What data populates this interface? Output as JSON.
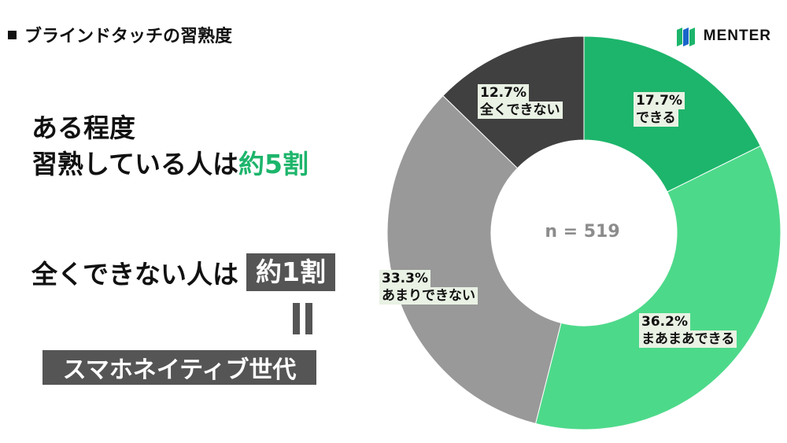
{
  "slide": {
    "title": "ブラインドタッチの習熟度",
    "logo_text": "MENTER",
    "headline_line1": "ある程度",
    "headline_line2_prefix": "習熟している人は",
    "headline_line2_accent": "約5割",
    "line2_prefix": "全くできない人は",
    "line2_pill": "約1割",
    "bottom_label": "スマホネイティブ世代"
  },
  "colors": {
    "accent": "#1db56b",
    "dark_gray": "#555555"
  },
  "chart_data": {
    "type": "pie",
    "donut": true,
    "center_text": "n = 519",
    "slices": [
      {
        "pct_label": "17.7%",
        "category": "できる",
        "value": 17.7,
        "color": "#1db56b"
      },
      {
        "pct_label": "36.2%",
        "category": "まあまあできる",
        "value": 36.2,
        "color": "#4dd98a"
      },
      {
        "pct_label": "33.3%",
        "category": "あまりできない",
        "value": 33.3,
        "color": "#999999"
      },
      {
        "pct_label": "12.7%",
        "category": "全くできない",
        "value": 12.7,
        "color": "#404040"
      }
    ]
  }
}
